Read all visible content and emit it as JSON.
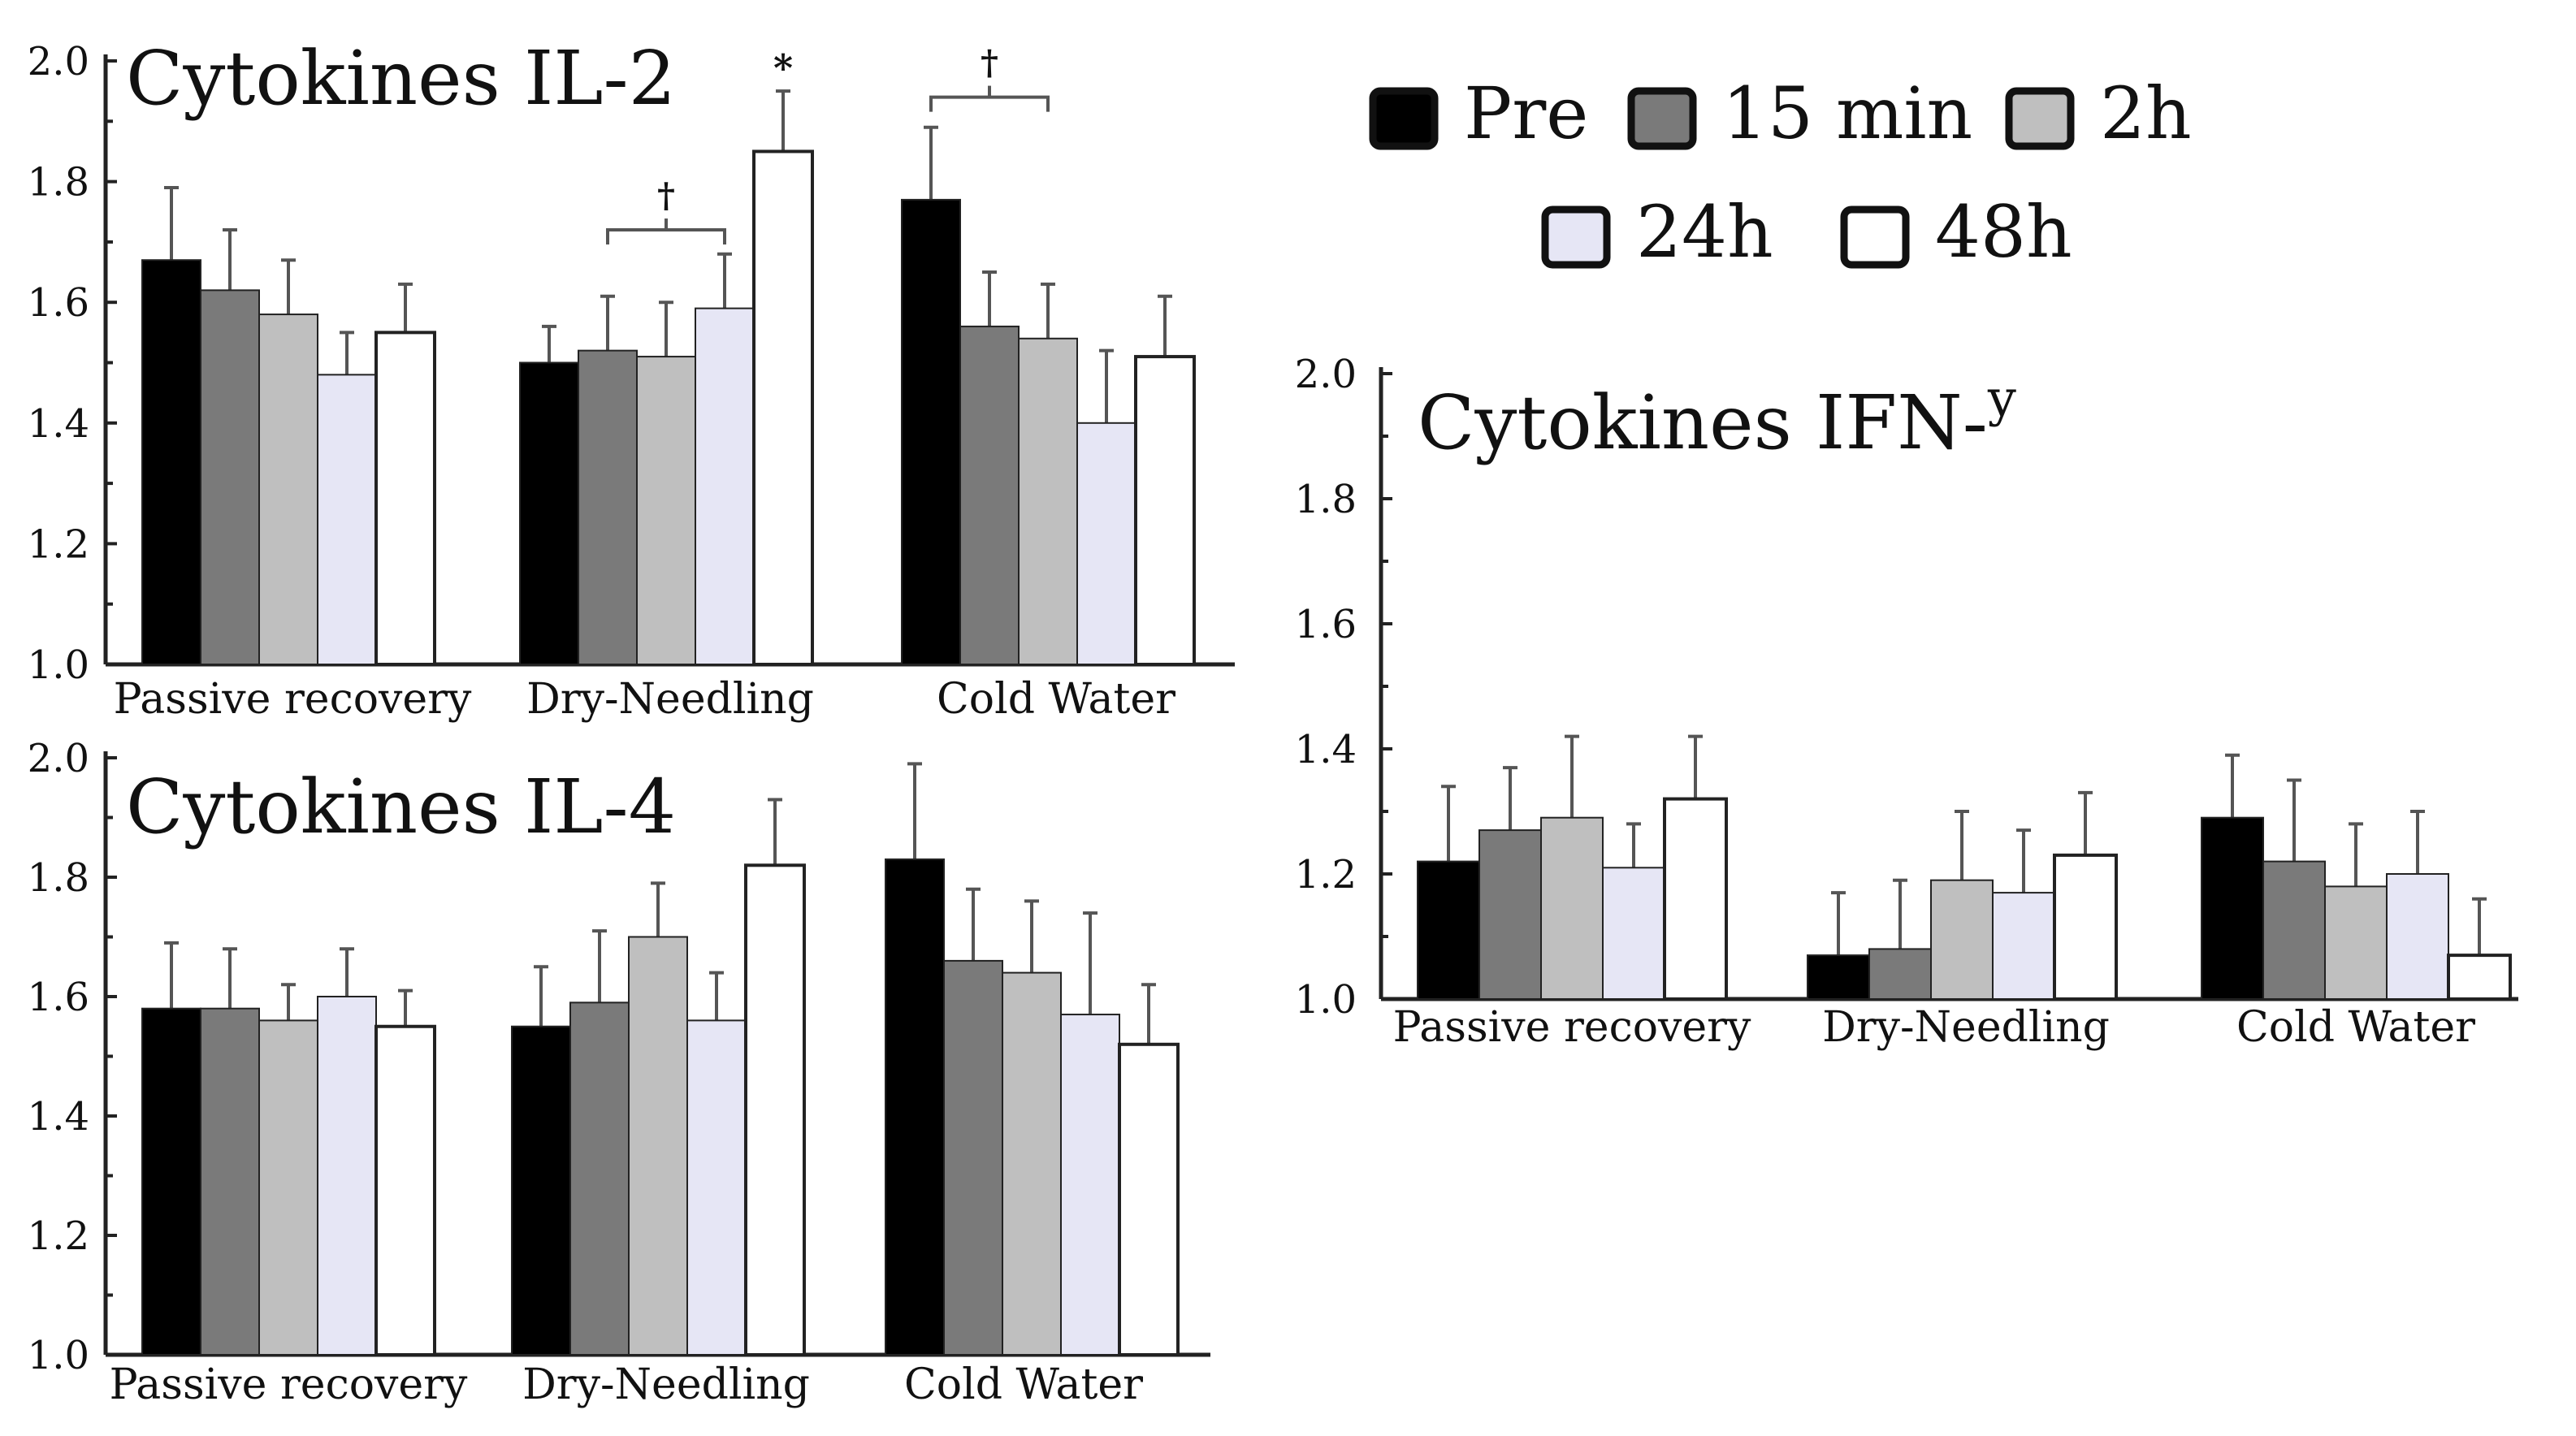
{
  "chart_data": [
    {
      "type": "bar",
      "title": "Cytokines IL-2",
      "title_superscript": "",
      "categories": [
        "Passive recovery",
        "Dry-Needling",
        "Cold Water"
      ],
      "series": [
        {
          "name": "Pre",
          "values": [
            1.67,
            1.5,
            1.77
          ],
          "errors": [
            0.12,
            0.06,
            0.12
          ]
        },
        {
          "name": "15 min",
          "values": [
            1.62,
            1.52,
            1.56
          ],
          "errors": [
            0.1,
            0.09,
            0.09
          ]
        },
        {
          "name": "2h",
          "values": [
            1.58,
            1.51,
            1.54
          ],
          "errors": [
            0.09,
            0.09,
            0.09
          ]
        },
        {
          "name": "24h",
          "values": [
            1.48,
            1.59,
            1.4
          ],
          "errors": [
            0.07,
            0.09,
            0.12
          ]
        },
        {
          "name": "48h",
          "values": [
            1.55,
            1.85,
            1.51
          ],
          "errors": [
            0.08,
            0.1,
            0.1
          ]
        }
      ],
      "ylim": [
        1.0,
        2.0
      ],
      "ytick_labels": [
        "1.0",
        "1.2",
        "1.4",
        "1.6",
        "1.8",
        "2.0"
      ],
      "xlabel": "",
      "ylabel": "",
      "annotations": [
        {
          "text": "†",
          "type": "bracket",
          "category": "Dry-Needling",
          "from_series": 1,
          "to_series": 3,
          "y": 1.72
        },
        {
          "text": "*",
          "type": "star",
          "category": "Dry-Needling",
          "series": 4
        },
        {
          "text": "†",
          "type": "bracket",
          "category": "Cold Water",
          "from_series": 0,
          "to_series": 2,
          "y": 1.94
        }
      ]
    },
    {
      "type": "bar",
      "title": "Cytokines IL-4",
      "title_superscript": "",
      "categories": [
        "Passive recovery",
        "Dry-Needling",
        "Cold Water"
      ],
      "series": [
        {
          "name": "Pre",
          "values": [
            1.58,
            1.55,
            1.83
          ],
          "errors": [
            0.11,
            0.1,
            0.16
          ]
        },
        {
          "name": "15 min",
          "values": [
            1.58,
            1.59,
            1.66
          ],
          "errors": [
            0.1,
            0.12,
            0.12
          ]
        },
        {
          "name": "2h",
          "values": [
            1.56,
            1.7,
            1.64
          ],
          "errors": [
            0.06,
            0.09,
            0.12
          ]
        },
        {
          "name": "24h",
          "values": [
            1.6,
            1.56,
            1.57
          ],
          "errors": [
            0.08,
            0.08,
            0.17
          ]
        },
        {
          "name": "48h",
          "values": [
            1.55,
            1.82,
            1.52
          ],
          "errors": [
            0.06,
            0.11,
            0.1
          ]
        }
      ],
      "ylim": [
        1.0,
        2.0
      ],
      "ytick_labels": [
        "1.0",
        "1.2",
        "1.4",
        "1.6",
        "1.8",
        "2.0"
      ],
      "xlabel": "",
      "ylabel": "",
      "annotations": []
    },
    {
      "type": "bar",
      "title": "Cytokines IFN-",
      "title_superscript": "y",
      "categories": [
        "Passive recovery",
        "Dry-Needling",
        "Cold Water"
      ],
      "series": [
        {
          "name": "Pre",
          "values": [
            1.22,
            1.07,
            1.29
          ],
          "errors": [
            0.12,
            0.1,
            0.1
          ]
        },
        {
          "name": "15 min",
          "values": [
            1.27,
            1.08,
            1.22
          ],
          "errors": [
            0.1,
            0.11,
            0.13
          ]
        },
        {
          "name": "2h",
          "values": [
            1.29,
            1.19,
            1.18
          ],
          "errors": [
            0.13,
            0.11,
            0.1
          ]
        },
        {
          "name": "24h",
          "values": [
            1.21,
            1.17,
            1.2
          ],
          "errors": [
            0.07,
            0.1,
            0.1
          ]
        },
        {
          "name": "48h",
          "values": [
            1.32,
            1.23,
            1.07
          ],
          "errors": [
            0.1,
            0.1,
            0.09
          ]
        }
      ],
      "ylim": [
        1.0,
        2.0
      ],
      "ytick_labels": [
        "1.0",
        "1.2",
        "1.4",
        "1.6",
        "1.8",
        "2.0"
      ],
      "xlabel": "",
      "ylabel": "",
      "annotations": []
    }
  ],
  "legend": {
    "placement": "top-right",
    "items": [
      {
        "name": "Pre",
        "color": "#000000"
      },
      {
        "name": "15 min",
        "color": "#7a7a7a"
      },
      {
        "name": "2h",
        "color": "#bfbfbf"
      },
      {
        "name": "24h",
        "color": "#e6e6f5"
      },
      {
        "name": "48h",
        "color": "#ffffff"
      }
    ]
  },
  "colors": {
    "series": [
      "#000000",
      "#7a7a7a",
      "#bfbfbf",
      "#e6e6f5",
      "#ffffff"
    ],
    "axis": "#222222",
    "error_bar": "#555555"
  }
}
